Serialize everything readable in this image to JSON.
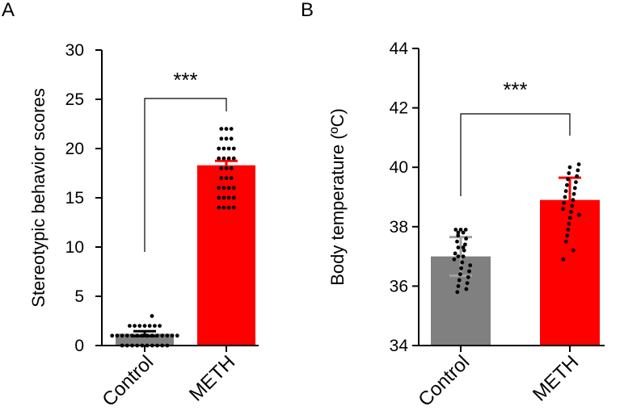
{
  "chart_data": [
    {
      "panel_label": "A",
      "type": "bar",
      "title": "",
      "ylabel": "Stereotypic behavior scores",
      "ylim": [
        0,
        30
      ],
      "yticks": [
        0,
        5,
        10,
        15,
        20,
        25,
        30
      ],
      "categories": [
        "Control",
        "METH"
      ],
      "values": [
        1.2,
        18.3
      ],
      "errors": [
        0.25,
        0.45
      ],
      "colors": [
        "#808080",
        "#ff0000"
      ],
      "error_colors": [
        "#000000",
        "#ff0000"
      ],
      "points": [
        [
          0,
          0,
          0,
          0,
          0,
          0,
          0,
          0,
          0,
          0,
          1,
          1,
          1,
          1,
          1,
          1,
          1,
          1,
          1,
          1,
          1,
          1,
          1,
          1,
          2,
          2,
          2,
          2,
          2,
          2,
          2,
          3
        ],
        [
          14,
          14,
          14,
          14,
          15,
          15,
          15,
          15,
          16,
          16,
          16,
          16,
          17,
          17,
          17,
          18,
          18,
          18,
          19,
          19,
          19,
          19,
          20,
          20,
          20,
          20,
          21,
          21,
          21,
          22,
          22,
          22
        ]
      ],
      "significance": "***"
    },
    {
      "panel_label": "B",
      "type": "bar",
      "title": "",
      "ylabel": "Body temperature (ºC)",
      "ylim": [
        34,
        44
      ],
      "yticks": [
        34,
        36,
        38,
        40,
        42,
        44
      ],
      "categories": [
        "Control",
        "METH"
      ],
      "values": [
        37.0,
        38.9
      ],
      "errors": [
        0.65,
        0.75
      ],
      "colors": [
        "#808080",
        "#ff0000"
      ],
      "error_colors": [
        "#a0a0a0",
        "#ff0000"
      ],
      "points": [
        [
          35.8,
          35.9,
          36.0,
          36.1,
          36.2,
          36.3,
          36.4,
          36.5,
          36.6,
          36.7,
          36.8,
          36.9,
          37.0,
          37.0,
          37.1,
          37.2,
          37.3,
          37.3,
          37.4,
          37.5,
          37.6,
          37.7,
          37.8,
          37.8,
          37.9,
          37.9,
          37.9
        ],
        [
          36.9,
          37.2,
          37.5,
          37.7,
          37.9,
          38.1,
          38.3,
          38.4,
          38.5,
          38.6,
          38.7,
          38.8,
          38.9,
          39.0,
          39.1,
          39.2,
          39.3,
          39.4,
          39.5,
          39.6,
          39.7,
          39.8,
          39.9,
          40.0,
          40.1
        ]
      ],
      "significance": "***"
    }
  ]
}
